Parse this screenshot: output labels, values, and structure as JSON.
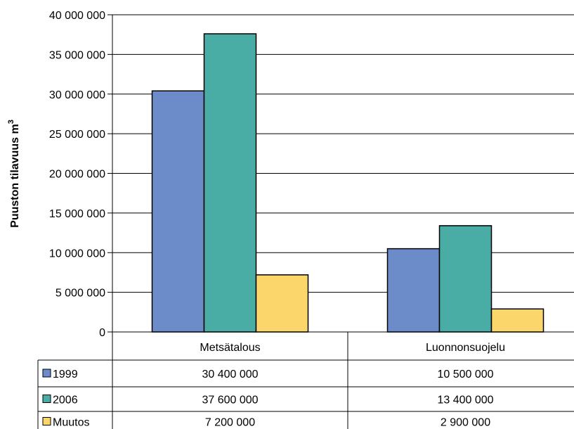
{
  "chart_data": {
    "type": "bar",
    "categories": [
      "Metsätalous",
      "Luonnonsuojelu"
    ],
    "series": [
      {
        "name": "1999",
        "values": [
          30400000,
          10500000
        ],
        "color": "#6b8cc9"
      },
      {
        "name": "2006",
        "values": [
          37600000,
          13400000
        ],
        "color": "#4aada5"
      },
      {
        "name": "Muutos",
        "values": [
          7200000,
          2900000
        ],
        "color": "#fad66b"
      }
    ],
    "ylabel": "Puuston tilavuus m",
    "ylabel_superscript": "3",
    "ylim": [
      0,
      40000000
    ],
    "yticks": [
      0,
      5000000,
      10000000,
      15000000,
      20000000,
      25000000,
      30000000,
      35000000,
      40000000
    ],
    "ytick_labels": [
      "0",
      "5 000 000",
      "10 000 000",
      "15 000 000",
      "20 000 000",
      "25 000 000",
      "30 000 000",
      "35 000 000",
      "40 000 000"
    ],
    "grid": true,
    "legend": "data-table",
    "data_table": {
      "rows": [
        {
          "label": "1999",
          "cells": [
            "30 400 000",
            "10 500 000"
          ]
        },
        {
          "label": "2006",
          "cells": [
            "37 600 000",
            "13 400 000"
          ]
        },
        {
          "label": "Muutos",
          "cells": [
            "7 200 000",
            "2 900 000"
          ]
        }
      ]
    }
  }
}
